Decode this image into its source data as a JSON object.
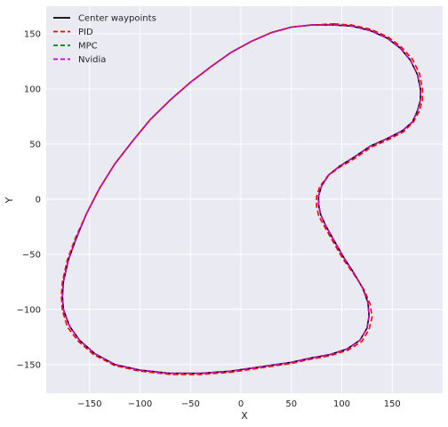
{
  "chart_data": {
    "type": "line",
    "title": "",
    "xlabel": "X",
    "ylabel": "Y",
    "xlim": [
      -193,
      200
    ],
    "ylim": [
      -176,
      175
    ],
    "x_ticks": [
      -150,
      -100,
      -50,
      0,
      50,
      100,
      150
    ],
    "y_ticks": [
      -150,
      -100,
      -50,
      0,
      50,
      100,
      150
    ],
    "x_tick_labels": [
      "−150",
      "−100",
      "−50",
      "0",
      "50",
      "100",
      "150"
    ],
    "y_tick_labels": [
      "−150",
      "−100",
      "−50",
      "0",
      "50",
      "100",
      "150"
    ],
    "grid": true,
    "legend_position": "top-left",
    "series": [
      {
        "name": "Center waypoints",
        "color": "#000000",
        "dash": "solid",
        "points": [
          [
            92,
            158
          ],
          [
            110,
            157
          ],
          [
            128,
            153
          ],
          [
            145,
            146
          ],
          [
            158,
            137
          ],
          [
            168,
            126
          ],
          [
            175,
            113
          ],
          [
            178,
            100
          ],
          [
            178,
            90
          ],
          [
            175,
            80
          ],
          [
            170,
            70
          ],
          [
            160,
            62
          ],
          [
            145,
            55
          ],
          [
            128,
            48
          ],
          [
            112,
            38
          ],
          [
            98,
            30
          ],
          [
            87,
            22
          ],
          [
            80,
            12
          ],
          [
            77,
            3
          ],
          [
            77,
            -5
          ],
          [
            79,
            -14
          ],
          [
            84,
            -24
          ],
          [
            92,
            -37
          ],
          [
            102,
            -53
          ],
          [
            112,
            -67
          ],
          [
            121,
            -81
          ],
          [
            126,
            -94
          ],
          [
            127,
            -106
          ],
          [
            125,
            -117
          ],
          [
            118,
            -128
          ],
          [
            105,
            -136
          ],
          [
            88,
            -141
          ],
          [
            70,
            -144
          ],
          [
            50,
            -148
          ],
          [
            20,
            -152
          ],
          [
            -10,
            -156
          ],
          [
            -40,
            -158
          ],
          [
            -70,
            -158
          ],
          [
            -100,
            -155
          ],
          [
            -125,
            -150
          ],
          [
            -145,
            -140
          ],
          [
            -160,
            -128
          ],
          [
            -170,
            -115
          ],
          [
            -176,
            -100
          ],
          [
            -177,
            -88
          ],
          [
            -176,
            -75
          ],
          [
            -171,
            -55
          ],
          [
            -163,
            -35
          ],
          [
            -153,
            -13
          ],
          [
            -140,
            10
          ],
          [
            -125,
            32
          ],
          [
            -108,
            52
          ],
          [
            -90,
            72
          ],
          [
            -70,
            90
          ],
          [
            -50,
            106
          ],
          [
            -30,
            120
          ],
          [
            -10,
            133
          ],
          [
            10,
            143
          ],
          [
            30,
            151
          ],
          [
            50,
            156
          ],
          [
            70,
            158
          ],
          [
            92,
            158
          ]
        ]
      },
      {
        "name": "PID",
        "color": "#ff0000",
        "dash": "dashed",
        "points": [
          [
            92,
            159
          ],
          [
            110,
            158
          ],
          [
            129,
            154
          ],
          [
            146,
            147
          ],
          [
            159,
            138
          ],
          [
            170,
            127
          ],
          [
            177,
            114
          ],
          [
            180,
            100
          ],
          [
            180,
            90
          ],
          [
            177,
            80
          ],
          [
            171,
            70
          ],
          [
            161,
            61
          ],
          [
            146,
            54
          ],
          [
            129,
            47
          ],
          [
            113,
            37
          ],
          [
            98,
            29
          ],
          [
            86,
            21
          ],
          [
            78,
            11
          ],
          [
            75,
            2
          ],
          [
            75,
            -6
          ],
          [
            77,
            -15
          ],
          [
            83,
            -25
          ],
          [
            91,
            -38
          ],
          [
            101,
            -54
          ],
          [
            112,
            -68
          ],
          [
            122,
            -82
          ],
          [
            128,
            -95
          ],
          [
            130,
            -107
          ],
          [
            127,
            -118
          ],
          [
            120,
            -129
          ],
          [
            106,
            -137
          ],
          [
            88,
            -142
          ],
          [
            70,
            -145
          ],
          [
            50,
            -149
          ],
          [
            20,
            -153
          ],
          [
            -10,
            -157
          ],
          [
            -40,
            -159
          ],
          [
            -70,
            -159
          ],
          [
            -100,
            -156
          ],
          [
            -125,
            -151
          ],
          [
            -146,
            -141
          ],
          [
            -161,
            -129
          ],
          [
            -172,
            -116
          ],
          [
            -177,
            -101
          ],
          [
            -178,
            -88
          ],
          [
            -177,
            -75
          ],
          [
            -172,
            -55
          ],
          [
            -164,
            -35
          ],
          [
            -153,
            -13
          ],
          [
            -140,
            10
          ],
          [
            -125,
            32
          ],
          [
            -108,
            52
          ],
          [
            -90,
            72
          ],
          [
            -70,
            90
          ],
          [
            -50,
            106
          ],
          [
            -30,
            120
          ],
          [
            -10,
            133
          ],
          [
            10,
            143
          ],
          [
            30,
            151
          ],
          [
            50,
            156
          ],
          [
            70,
            158
          ],
          [
            92,
            159
          ]
        ]
      },
      {
        "name": "MPC",
        "color": "#008000",
        "dash": "dashed",
        "points": [
          [
            92,
            158
          ],
          [
            110,
            157
          ],
          [
            128,
            153
          ],
          [
            145,
            146
          ],
          [
            158,
            137
          ],
          [
            168,
            126
          ],
          [
            175,
            113
          ],
          [
            178,
            100
          ],
          [
            178,
            90
          ],
          [
            175,
            80
          ],
          [
            170,
            70
          ],
          [
            160,
            62
          ],
          [
            145,
            55
          ],
          [
            128,
            48
          ],
          [
            112,
            38
          ],
          [
            98,
            30
          ],
          [
            87,
            22
          ],
          [
            80,
            12
          ],
          [
            77,
            3
          ],
          [
            77,
            -5
          ],
          [
            79,
            -14
          ],
          [
            84,
            -24
          ],
          [
            92,
            -37
          ],
          [
            102,
            -53
          ],
          [
            112,
            -67
          ],
          [
            121,
            -81
          ],
          [
            126,
            -94
          ],
          [
            127,
            -106
          ],
          [
            125,
            -117
          ],
          [
            118,
            -128
          ],
          [
            105,
            -136
          ],
          [
            88,
            -141
          ],
          [
            70,
            -144
          ],
          [
            50,
            -148
          ],
          [
            20,
            -152
          ],
          [
            -10,
            -156
          ],
          [
            -40,
            -158
          ],
          [
            -70,
            -158
          ],
          [
            -100,
            -155
          ],
          [
            -125,
            -150
          ],
          [
            -145,
            -140
          ],
          [
            -160,
            -128
          ],
          [
            -170,
            -115
          ],
          [
            -176,
            -100
          ],
          [
            -177,
            -88
          ],
          [
            -176,
            -75
          ],
          [
            -171,
            -55
          ],
          [
            -163,
            -35
          ],
          [
            -153,
            -13
          ],
          [
            -140,
            10
          ],
          [
            -125,
            32
          ],
          [
            -108,
            52
          ],
          [
            -90,
            72
          ],
          [
            -70,
            90
          ],
          [
            -50,
            106
          ],
          [
            -30,
            120
          ],
          [
            -10,
            133
          ],
          [
            10,
            143
          ],
          [
            30,
            151
          ],
          [
            50,
            156
          ],
          [
            70,
            158
          ],
          [
            92,
            158
          ]
        ]
      },
      {
        "name": "Nvidia",
        "color": "#cc00cc",
        "dash": "dashed",
        "points": [
          [
            92,
            158
          ],
          [
            110,
            157
          ],
          [
            128,
            153
          ],
          [
            145,
            146
          ],
          [
            158,
            137
          ],
          [
            168,
            126
          ],
          [
            175,
            113
          ],
          [
            178,
            100
          ],
          [
            178,
            90
          ],
          [
            175,
            80
          ],
          [
            170,
            70
          ],
          [
            160,
            62
          ],
          [
            145,
            55
          ],
          [
            128,
            48
          ],
          [
            112,
            38
          ],
          [
            98,
            30
          ],
          [
            87,
            22
          ],
          [
            80,
            12
          ],
          [
            77,
            3
          ],
          [
            77,
            -5
          ],
          [
            79,
            -14
          ],
          [
            84,
            -24
          ],
          [
            92,
            -37
          ],
          [
            102,
            -53
          ],
          [
            112,
            -67
          ],
          [
            121,
            -81
          ],
          [
            126,
            -94
          ],
          [
            127,
            -106
          ],
          [
            125,
            -117
          ],
          [
            118,
            -128
          ],
          [
            105,
            -136
          ],
          [
            88,
            -141
          ],
          [
            70,
            -144
          ],
          [
            50,
            -148
          ],
          [
            20,
            -152
          ],
          [
            -10,
            -156
          ],
          [
            -40,
            -158
          ],
          [
            -70,
            -158
          ],
          [
            -100,
            -155
          ],
          [
            -125,
            -150
          ],
          [
            -145,
            -140
          ],
          [
            -160,
            -128
          ],
          [
            -170,
            -115
          ],
          [
            -176,
            -100
          ],
          [
            -177,
            -88
          ],
          [
            -176,
            -75
          ],
          [
            -171,
            -55
          ],
          [
            -163,
            -35
          ],
          [
            -153,
            -13
          ],
          [
            -140,
            10
          ],
          [
            -125,
            32
          ],
          [
            -108,
            52
          ],
          [
            -90,
            72
          ],
          [
            -70,
            90
          ],
          [
            -50,
            106
          ],
          [
            -30,
            120
          ],
          [
            -10,
            133
          ],
          [
            10,
            143
          ],
          [
            30,
            151
          ],
          [
            50,
            156
          ],
          [
            70,
            158
          ],
          [
            92,
            158
          ]
        ]
      }
    ]
  }
}
